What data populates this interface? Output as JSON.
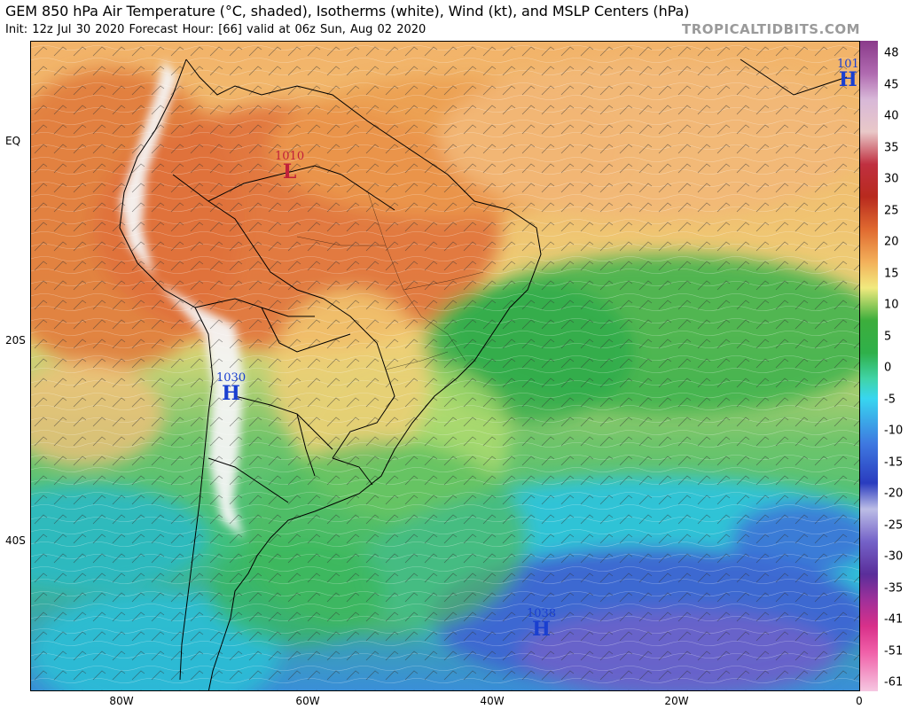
{
  "header": {
    "title": "GEM 850 hPa Air Temperature (°C, shaded), Isotherms (white), Wind (kt), and MSLP Centers (hPa)",
    "subtitle": "Init: 12z Jul 30 2020   Forecast Hour: [66]   valid at 06z Sun, Aug 02 2020",
    "brand": "TROPICALTIDBITS.COM"
  },
  "map": {
    "lat_labels": [
      "EQ",
      "20S",
      "40S"
    ],
    "lon_labels": [
      "80W",
      "60W",
      "40W",
      "20W",
      "0"
    ],
    "pressure_centers": [
      {
        "type": "low",
        "symbol": "L",
        "value": "1010",
        "color": "#c0203a"
      },
      {
        "type": "high",
        "symbol": "H",
        "value": "1030",
        "color": "#1a3fd0"
      },
      {
        "type": "high",
        "symbol": "H",
        "value": "1038",
        "color": "#1a3fd0"
      },
      {
        "type": "high",
        "symbol": "H",
        "value": "101",
        "color": "#1a3fd0"
      }
    ]
  },
  "colorbar": {
    "ticks": [
      "48",
      "45",
      "40",
      "35",
      "30",
      "25",
      "20",
      "15",
      "10",
      "5",
      "0",
      "-5",
      "-10",
      "-15",
      "-20",
      "-25",
      "-30",
      "-35",
      "-41",
      "-51",
      "-61"
    ]
  }
}
